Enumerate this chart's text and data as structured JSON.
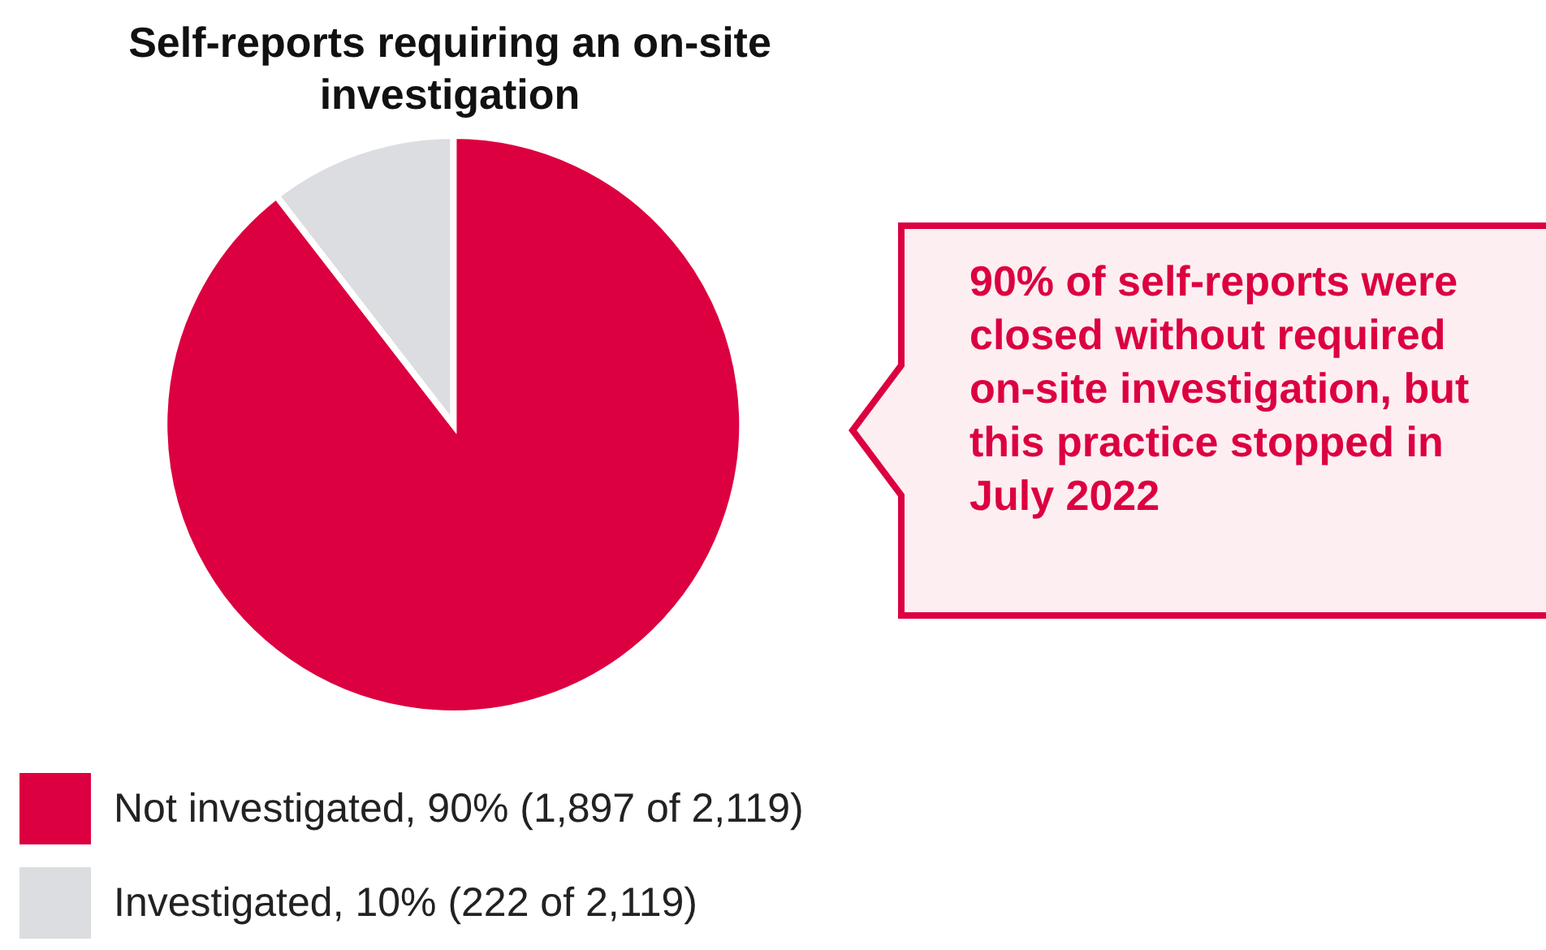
{
  "chart_data": {
    "type": "pie",
    "title": "Self-reports requiring an on-site investigation",
    "categories": [
      "Not investigated, 90% (1,897 of 2,119)",
      "Investigated, 10% (222 of 2,119)"
    ],
    "values": [
      1897,
      222
    ],
    "colors": [
      "#dc0040",
      "#dcdde0"
    ],
    "legend": "bottom",
    "annotations": [
      "90% of self-reports were closed without required on-site investigation, but this practice stopped in July 2022"
    ]
  }
}
